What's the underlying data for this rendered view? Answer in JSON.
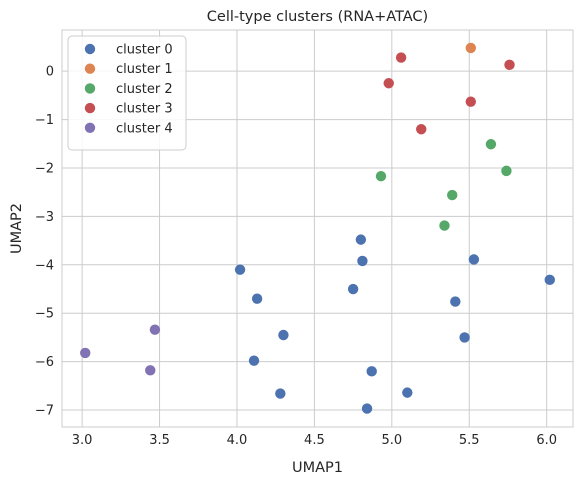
{
  "chart_data": {
    "type": "scatter",
    "title": "Cell-type clusters (RNA+ATAC)",
    "xlabel": "UMAP1",
    "ylabel": "UMAP2",
    "xlim": [
      2.87,
      6.17
    ],
    "ylim": [
      -7.35,
      0.85
    ],
    "xticks": [
      "3.0",
      "3.5",
      "4.0",
      "4.5",
      "5.0",
      "5.5",
      "6.0"
    ],
    "yticks": [
      "0",
      "−1",
      "−2",
      "−3",
      "−4",
      "−5",
      "−6",
      "−7"
    ],
    "grid": true,
    "legend_position": "top-left",
    "series": [
      {
        "name": "cluster 0",
        "color": "#4c72b0",
        "points": [
          [
            4.8,
            -3.48
          ],
          [
            4.81,
            -3.92
          ],
          [
            4.02,
            -4.1
          ],
          [
            4.13,
            -4.7
          ],
          [
            4.75,
            -4.5
          ],
          [
            4.3,
            -5.45
          ],
          [
            4.11,
            -5.98
          ],
          [
            4.28,
            -6.66
          ],
          [
            4.87,
            -6.2
          ],
          [
            4.84,
            -6.97
          ],
          [
            5.1,
            -6.64
          ],
          [
            5.53,
            -3.89
          ],
          [
            5.41,
            -4.76
          ],
          [
            5.47,
            -5.5
          ],
          [
            6.02,
            -4.31
          ]
        ]
      },
      {
        "name": "cluster 1",
        "color": "#dd8452",
        "points": [
          [
            5.51,
            0.48
          ]
        ]
      },
      {
        "name": "cluster 2",
        "color": "#55a868",
        "points": [
          [
            4.93,
            -2.17
          ],
          [
            5.39,
            -2.56
          ],
          [
            5.34,
            -3.19
          ],
          [
            5.64,
            -1.51
          ],
          [
            5.74,
            -2.06
          ]
        ]
      },
      {
        "name": "cluster 3",
        "color": "#c44e52",
        "points": [
          [
            5.06,
            0.28
          ],
          [
            4.98,
            -0.25
          ],
          [
            5.19,
            -1.2
          ],
          [
            5.51,
            -0.63
          ],
          [
            5.76,
            0.13
          ]
        ]
      },
      {
        "name": "cluster 4",
        "color": "#8172b3",
        "points": [
          [
            3.02,
            -5.82
          ],
          [
            3.47,
            -5.34
          ],
          [
            3.44,
            -6.18
          ]
        ]
      }
    ]
  }
}
